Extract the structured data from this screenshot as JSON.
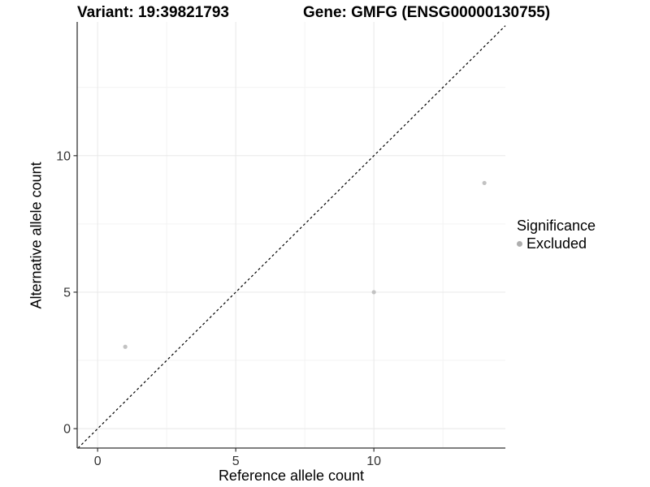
{
  "chart_data": {
    "type": "scatter",
    "title_left": "Variant: 19:39821793",
    "title_right": "Gene: GMFG (ENSG00000130755)",
    "xlabel": "Reference allele count",
    "ylabel": "Alternative allele count",
    "xlim": [
      -0.74,
      14.76
    ],
    "ylim": [
      -0.71,
      14.9
    ],
    "x_major_ticks": [
      0,
      5,
      10
    ],
    "x_minor_ticks": [
      2.5,
      7.5,
      12.5
    ],
    "y_major_ticks": [
      0,
      5,
      10
    ],
    "y_minor_ticks": [
      2.5,
      7.5,
      12.5
    ],
    "grid": true,
    "identity_line": {
      "style": "dashed",
      "color": "#000000"
    },
    "series": [
      {
        "name": "Excluded",
        "color": "#c2c2c2",
        "points": [
          {
            "x": 1,
            "y": 3
          },
          {
            "x": 10,
            "y": 5
          },
          {
            "x": 14,
            "y": 9
          }
        ]
      }
    ],
    "legend": {
      "title": "Significance",
      "position": "right",
      "items": [
        {
          "label": "Excluded",
          "color": "#aeaeae"
        }
      ]
    },
    "colors": {
      "axis": "#333333",
      "tick_label": "#333333",
      "grid_major": "#e8e8e8",
      "grid_minor": "#f3f3f3",
      "background": "#ffffff"
    }
  }
}
